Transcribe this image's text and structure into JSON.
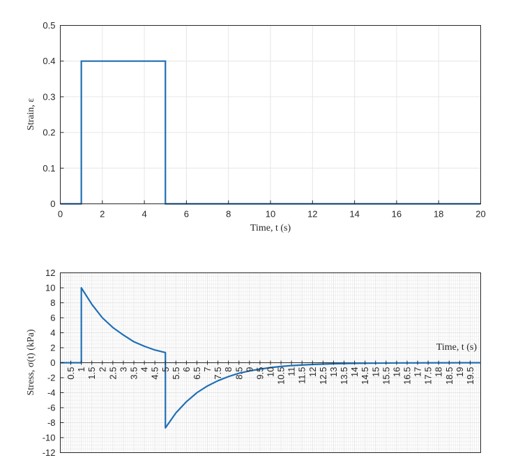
{
  "chart_data": [
    {
      "type": "line",
      "xlabel": "Time, t (s)",
      "ylabel": "Strain, ε",
      "xlim": [
        0,
        20
      ],
      "ylim": [
        0,
        0.5
      ],
      "xticks": [
        "0",
        "2",
        "4",
        "6",
        "8",
        "10",
        "12",
        "14",
        "16",
        "18",
        "20"
      ],
      "yticks": [
        "0",
        "0.1",
        "0.2",
        "0.3",
        "0.4",
        "0.5"
      ],
      "grid": true,
      "series": [
        {
          "x": [
            0,
            1,
            1,
            5,
            5,
            20
          ],
          "y": [
            0,
            0,
            0.4,
            0.4,
            0,
            0
          ]
        }
      ]
    },
    {
      "type": "line",
      "xlabel": "Time, t (s)",
      "ylabel": "Stress, σ(t) (kPa)",
      "xlim": [
        0,
        20
      ],
      "ylim": [
        -12,
        12
      ],
      "x_axis_crosses_at": 0,
      "xticks": [
        "0.5",
        "1",
        "1.5",
        "2",
        "2.5",
        "3",
        "3.5",
        "4",
        "4.5",
        "5",
        "5.5",
        "6",
        "6.5",
        "7",
        "7.5",
        "8",
        "8.5",
        "9",
        "9.5",
        "10",
        "10.5",
        "11",
        "11.5",
        "12",
        "12.5",
        "13",
        "13.5",
        "14",
        "14.5",
        "15",
        "15.5",
        "16",
        "16.5",
        "17",
        "17.5",
        "18",
        "18.5",
        "19",
        "19.5"
      ],
      "yticks": [
        "12",
        "10",
        "8",
        "6",
        "4",
        "2",
        "0",
        "-2",
        "-4",
        "-6",
        "-8",
        "-10",
        "-12"
      ],
      "grid": true,
      "minor_grid": true,
      "series": [
        {
          "x": [
            0,
            1,
            1,
            1.5,
            2,
            2.5,
            3,
            3.5,
            4,
            4.5,
            5,
            5,
            5.5,
            6,
            6.5,
            7,
            7.5,
            8,
            8.5,
            9,
            9.5,
            10,
            10.5,
            11,
            11.5,
            12,
            13,
            14,
            16,
            18,
            20
          ],
          "y": [
            0,
            0,
            10,
            7.8,
            6.0,
            4.7,
            3.7,
            2.8,
            2.2,
            1.7,
            1.35,
            -8.7,
            -6.7,
            -5.2,
            -4.0,
            -3.1,
            -2.4,
            -1.85,
            -1.4,
            -1.1,
            -0.85,
            -0.65,
            -0.5,
            -0.38,
            -0.3,
            -0.23,
            -0.14,
            -0.08,
            -0.03,
            -0.01,
            0
          ]
        }
      ]
    }
  ]
}
